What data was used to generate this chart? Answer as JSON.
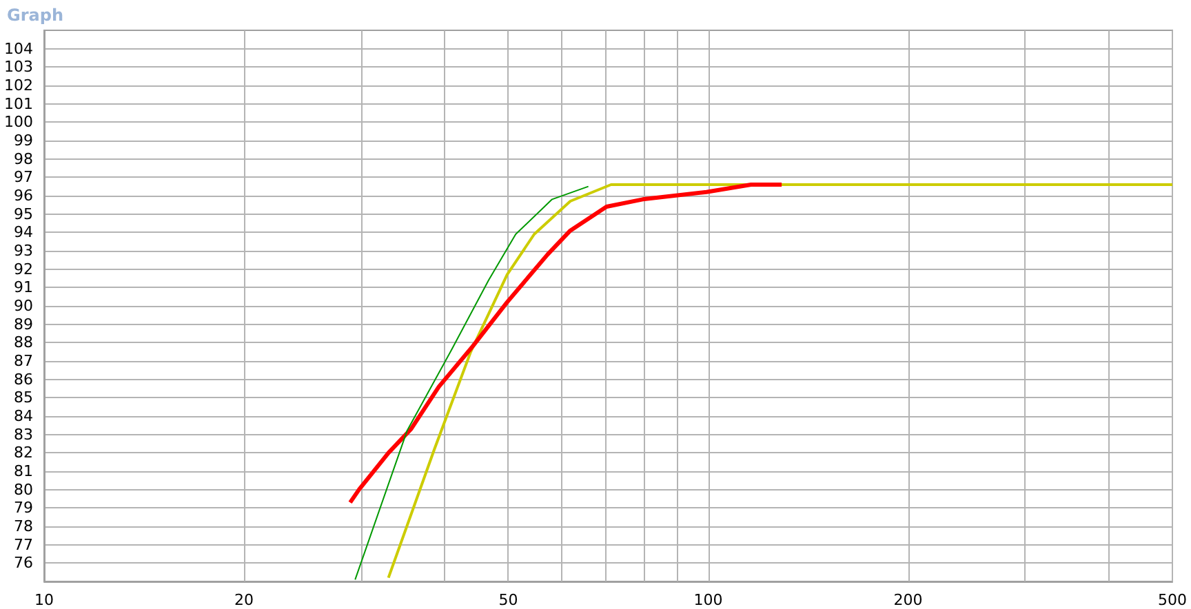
{
  "chart_data": {
    "type": "line",
    "title": "Graph",
    "log": "x",
    "grid": true,
    "marker": "none",
    "line_style": "solid",
    "xlim": [
      10,
      500
    ],
    "ylim": [
      75,
      105
    ],
    "xticks": [
      10,
      20,
      {
        "value": 30,
        "label": null
      },
      {
        "value": 40,
        "label": null
      },
      50,
      {
        "value": 60,
        "label": null
      },
      {
        "value": 70,
        "label": null
      },
      {
        "value": 80,
        "label": null
      },
      {
        "value": 90,
        "label": null
      },
      100,
      200,
      {
        "value": 300,
        "label": null
      },
      {
        "value": 400,
        "label": null
      },
      500
    ],
    "yticks": [
      76,
      77,
      78,
      79,
      80,
      81,
      82,
      83,
      84,
      85,
      86,
      87,
      88,
      89,
      90,
      91,
      92,
      93,
      94,
      95,
      96,
      97,
      98,
      99,
      100,
      101,
      102,
      103,
      104
    ],
    "series": [
      {
        "color": "#009900",
        "x": [
          29.4,
          35.2,
          41.2,
          46.7,
          51.3,
          58.2,
          66.0
        ],
        "values": [
          75.1,
          83.2,
          87.7,
          91.4,
          93.9,
          95.8,
          96.5
        ]
      },
      {
        "color": "#cccc00",
        "x": [
          33.0,
          38.7,
          43.9,
          49.8,
          54.7,
          62.0,
          71.4,
          100,
          200,
          500
        ],
        "values": [
          75.2,
          82.2,
          87.5,
          91.7,
          93.9,
          95.7,
          96.6,
          96.6,
          96.6,
          96.6
        ]
      },
      {
        "color": "#ff0000",
        "x": [
          28.9,
          29.8,
          33.0,
          35.7,
          39.3,
          44.2,
          49.8,
          57.3,
          62.0,
          70.3,
          79.7,
          99.4,
          116,
          129
        ],
        "values": [
          79.3,
          80.0,
          82.0,
          83.3,
          85.6,
          87.8,
          90.2,
          92.8,
          94.1,
          95.4,
          95.8,
          96.2,
          96.6,
          96.6
        ]
      }
    ]
  }
}
